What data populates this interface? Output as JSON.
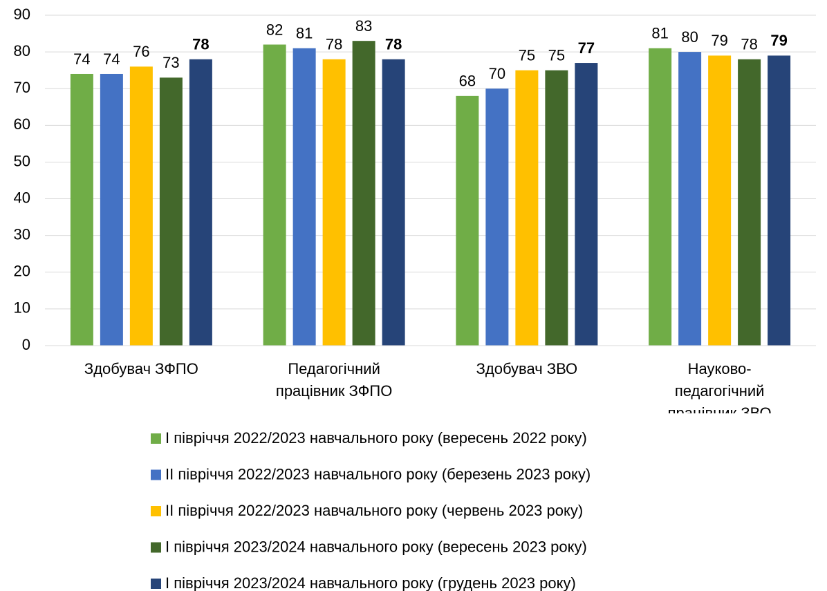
{
  "chart_data": {
    "type": "bar",
    "categories": [
      "Здобувач ЗФПО",
      "Педагогічний працівник ЗФПО",
      "Здобувач ЗВО",
      "Науково-педагогічний працівник ЗВО"
    ],
    "series": [
      {
        "name": "І півріччя 2022/2023 навчального року (вересень 2022 року)",
        "color": "#70ad47",
        "values": [
          74,
          82,
          68,
          81
        ]
      },
      {
        "name": "ІІ півріччя 2022/2023 навчального року (березень 2023 року)",
        "color": "#4472c4",
        "values": [
          74,
          81,
          70,
          80
        ]
      },
      {
        "name": "ІІ півріччя 2022/2023 навчального року (червень 2023 року)",
        "color": "#ffc000",
        "values": [
          76,
          78,
          75,
          79
        ]
      },
      {
        "name": "І півріччя 2023/2024 навчального року (вересень 2023 року)",
        "color": "#43682b",
        "values": [
          73,
          83,
          75,
          78
        ]
      },
      {
        "name": "І півріччя 2023/2024 навчального року (грудень 2023 року)",
        "color": "#264478",
        "values": [
          78,
          78,
          77,
          79
        ],
        "label_bold": true
      }
    ],
    "ylim": [
      0,
      90
    ],
    "yticks": [
      0,
      10,
      20,
      30,
      40,
      50,
      60,
      70,
      80,
      90
    ],
    "grid": true,
    "legend": "bottom"
  }
}
